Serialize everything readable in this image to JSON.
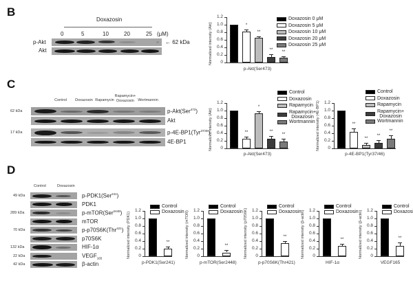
{
  "colors": {
    "black": "#000000",
    "white": "#ffffff",
    "light_gray": "#bcbcbc",
    "dark_gray": "#3c3c3c",
    "mid_gray": "#7a7a7a"
  },
  "panelB": {
    "letter": "B",
    "blot": {
      "treatment": "Doxazosin",
      "doses": [
        "0",
        "5",
        "10",
        "20",
        "25"
      ],
      "unit": "(μM)",
      "rows": [
        "p-Akt",
        "Akt"
      ],
      "marker": "← 62 kDa"
    }
  },
  "panelC": {
    "letter": "C",
    "blot": {
      "lanes": [
        "Control",
        "Doxazosin",
        "Rapamycin",
        "Rapamycin+\nDoxazosin",
        "Wortmannin"
      ],
      "rows": [
        {
          "kda": "62 kDa",
          "name": "p-Akt(Ser",
          "sup": "473",
          "tail": ")"
        },
        {
          "kda": "",
          "name": "Akt",
          "sup": "",
          "tail": ""
        },
        {
          "kda": "17 kDa",
          "name": "p-4E-BP1(Tyr",
          "sup": "37/46",
          "tail": ")"
        },
        {
          "kda": "",
          "name": "4E-BP1",
          "sup": "",
          "tail": ""
        }
      ]
    }
  },
  "panelD": {
    "letter": "D",
    "blot": {
      "lanes": [
        "Control",
        "Doxazosin"
      ],
      "rows": [
        {
          "kda": "49 kDa",
          "name": "p-PDK1(Ser",
          "sup": "241",
          "tail": ")"
        },
        {
          "kda": "",
          "name": "PDK1",
          "sup": "",
          "tail": ""
        },
        {
          "kda": "289 kDa",
          "name": "p-mTOR(Ser",
          "sup": "2448",
          "tail": ")"
        },
        {
          "kda": "",
          "name": "mTOR",
          "sup": "",
          "tail": ""
        },
        {
          "kda": "70 kDa",
          "name": "p-p70S6K(Thr",
          "sup": "421",
          "tail": ")"
        },
        {
          "kda": "",
          "name": "p70S6K",
          "sup": "",
          "tail": ""
        },
        {
          "kda": "132 kDa",
          "name": "HIF-1α",
          "sup": "",
          "tail": ""
        },
        {
          "kda": "22 kDa",
          "name": "VEGF",
          "sub": "165",
          "tail": ""
        },
        {
          "kda": "42 kDa",
          "name": "β-actin",
          "sup": "",
          "tail": ""
        }
      ]
    }
  },
  "chart_data": [
    {
      "id": "B-pAkt",
      "type": "bar",
      "title": "",
      "xlabel": "p-Akt(Ser473)",
      "ylabel": "Normalized intensity (Akt)",
      "ylim": [
        0,
        1.2
      ],
      "yticks": [
        "0",
        "0.2",
        "0.4",
        "0.6",
        "0.8",
        "1.0",
        "1.2"
      ],
      "legend": [
        "Doxazosin 0 μM",
        "Doxazosin 5 μM",
        "Doxazosin 10 μM",
        "Doxazosin 20 μM",
        "Doxazosin 25 μM"
      ],
      "legend_position": "right",
      "categories": [
        "Doxazosin 0 μM",
        "Doxazosin 5 μM",
        "Doxazosin 10 μM",
        "Doxazosin 20 μM",
        "Doxazosin 25 μM"
      ],
      "values": [
        1.0,
        0.82,
        0.65,
        0.15,
        0.12
      ],
      "errors": [
        0,
        0.06,
        0.05,
        0.06,
        0.05
      ],
      "significance": [
        "",
        "*",
        "**",
        "**",
        "**"
      ]
    },
    {
      "id": "C-pAkt",
      "type": "bar",
      "xlabel": "p-Akt(Ser473)",
      "ylabel": "Normalized intensity (Akt)",
      "ylim": [
        0,
        1.2
      ],
      "yticks": [
        "0",
        "0.2",
        "0.4",
        "0.6",
        "0.8",
        "1.0",
        "1.2"
      ],
      "legend": [
        "Control",
        "Doxazosin",
        "Rapamycin",
        "Rapamycin+ Doxazosin",
        "Wortmannin"
      ],
      "legend_position": "right",
      "categories": [
        "Control",
        "Doxazosin",
        "Rapamycin",
        "Rapamycin+Doxazosin",
        "Wortmannin"
      ],
      "values": [
        1.0,
        0.26,
        0.93,
        0.26,
        0.18
      ],
      "errors": [
        0,
        0.05,
        0.05,
        0.06,
        0.07
      ],
      "significance": [
        "",
        "**",
        "*",
        "**",
        "**"
      ]
    },
    {
      "id": "C-p4EBP1",
      "type": "bar",
      "xlabel": "p-4E-BP1(Tyr37/46)",
      "ylabel": "Normalized intensity (4E-BP1)",
      "ylim": [
        0,
        1.2
      ],
      "yticks": [
        "0",
        "0.2",
        "0.4",
        "0.6",
        "0.8",
        "1.0",
        "1.2"
      ],
      "legend": [
        "Control",
        "Doxazosin",
        "Rapamycin",
        "Rapamycin+ Doxazosin",
        "Wortmannin"
      ],
      "legend_position": "top-right",
      "categories": [
        "Control",
        "Doxazosin",
        "Rapamycin",
        "Rapamycin+Doxazosin",
        "Wortmannin"
      ],
      "values": [
        1.0,
        0.44,
        0.09,
        0.14,
        0.26
      ],
      "errors": [
        0,
        0.08,
        0.05,
        0.07,
        0.08
      ],
      "significance": [
        "",
        "**",
        "**",
        "**",
        "**"
      ]
    },
    {
      "id": "D-pPDK1",
      "type": "bar",
      "xlabel": "p-PDK1(Ser241)",
      "ylabel": "Normalized intensity (PDK1)",
      "ylim": [
        0,
        1.2
      ],
      "yticks": [
        "0",
        "0.2",
        "0.4",
        "0.6",
        "0.8",
        "1.0",
        "1.2"
      ],
      "legend": [
        "Control",
        "Doxazosin"
      ],
      "categories": [
        "Control",
        "Doxazosin"
      ],
      "values": [
        1.0,
        0.2
      ],
      "errors": [
        0,
        0.05
      ],
      "significance": [
        "",
        "**"
      ]
    },
    {
      "id": "D-pmTOR",
      "type": "bar",
      "xlabel": "p-mTOR(Ser2448)",
      "ylabel": "Normalized intensity (mTOR)",
      "ylim": [
        0,
        1.2
      ],
      "yticks": [
        "0",
        "0.2",
        "0.4",
        "0.6",
        "0.8",
        "1.0",
        "1.2"
      ],
      "legend": [
        "Control",
        "Doxazosin"
      ],
      "categories": [
        "Control",
        "Doxazosin"
      ],
      "values": [
        1.0,
        0.1
      ],
      "errors": [
        0,
        0.07
      ],
      "significance": [
        "",
        "**"
      ]
    },
    {
      "id": "D-pp70S6K",
      "type": "bar",
      "xlabel": "p-p70S6K(Thr421)",
      "ylabel": "Normalized intensity (p70S6K)",
      "ylim": [
        0,
        1.2
      ],
      "yticks": [
        "0",
        "0.2",
        "0.4",
        "0.6",
        "0.8",
        "1.0",
        "1.2"
      ],
      "legend": [
        "Control",
        "Doxazosin"
      ],
      "categories": [
        "Control",
        "Doxazosin"
      ],
      "values": [
        1.0,
        0.35
      ],
      "errors": [
        0,
        0.05
      ],
      "significance": [
        "",
        "**"
      ]
    },
    {
      "id": "D-HIF1a",
      "type": "bar",
      "xlabel": "HIF-1α",
      "ylabel": "Normalized intensity (β-actin)",
      "ylim": [
        0,
        1.2
      ],
      "yticks": [
        "0",
        "0.2",
        "0.4",
        "0.6",
        "0.8",
        "1.0",
        "1.2"
      ],
      "legend": [
        "Control",
        "Doxazosin"
      ],
      "categories": [
        "Control",
        "Doxazosin"
      ],
      "values": [
        1.0,
        0.28
      ],
      "errors": [
        0,
        0.04
      ],
      "significance": [
        "",
        "**"
      ]
    },
    {
      "id": "D-VEGF165",
      "type": "bar",
      "xlabel": "VEGF165",
      "ylabel": "Normalized intensity (β-actin)",
      "ylim": [
        0,
        1.2
      ],
      "yticks": [
        "0",
        "0.2",
        "0.4",
        "0.6",
        "0.8",
        "1.0",
        "1.2"
      ],
      "legend": [
        "Control",
        "Doxazosin"
      ],
      "categories": [
        "Control",
        "Doxazosin"
      ],
      "values": [
        1.0,
        0.28
      ],
      "errors": [
        0,
        0.09
      ],
      "significance": [
        "",
        "**"
      ]
    }
  ]
}
